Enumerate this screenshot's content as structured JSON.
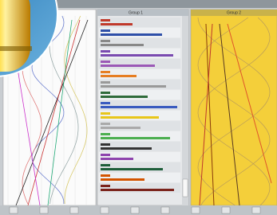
{
  "header": {
    "left_title": "Group 1",
    "right_title": "Group 2"
  }
}
